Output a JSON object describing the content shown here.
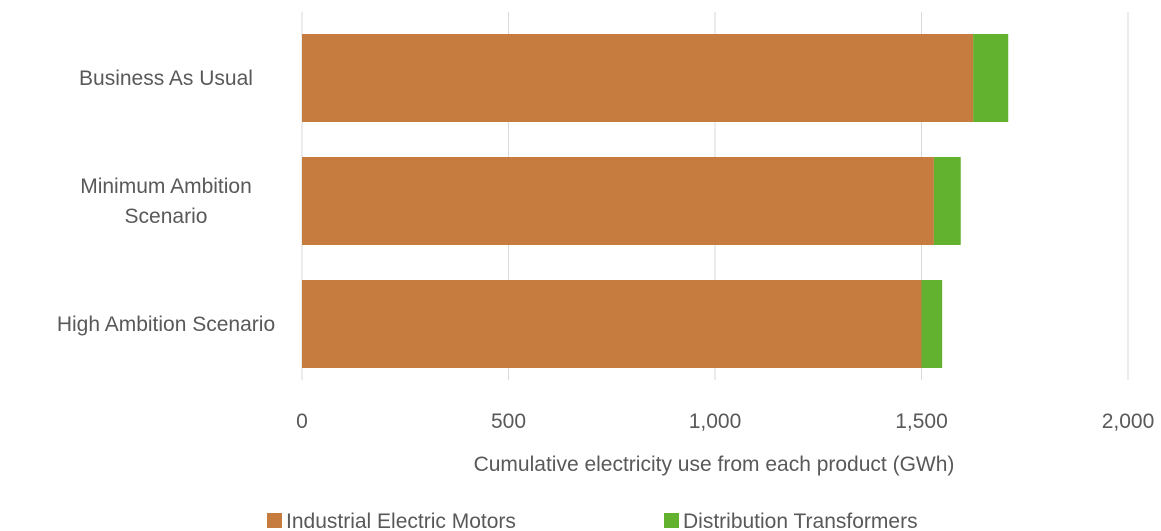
{
  "chart_data": {
    "type": "bar",
    "orientation": "horizontal",
    "stacked": true,
    "categories": [
      [
        "Business As Usual"
      ],
      [
        "Minimum Ambition",
        "Scenario"
      ],
      [
        "High Ambition Scenario"
      ]
    ],
    "series": [
      {
        "name": "Industrial Electric Motors",
        "color": "#c67c3f",
        "values": [
          1625,
          1530,
          1500
        ]
      },
      {
        "name": "Distribution Transformers",
        "color": "#63b22f",
        "values": [
          85,
          65,
          50
        ]
      }
    ],
    "xlim": [
      0,
      2000
    ],
    "xticks": [
      0,
      500,
      1000,
      1500,
      2000
    ],
    "xtick_labels": [
      "0",
      "500",
      "1,000",
      "1,500",
      "2,000"
    ],
    "xlabel": "Cumulative electricity use from each product (GWh)",
    "grid": true,
    "legend": "bottom"
  }
}
